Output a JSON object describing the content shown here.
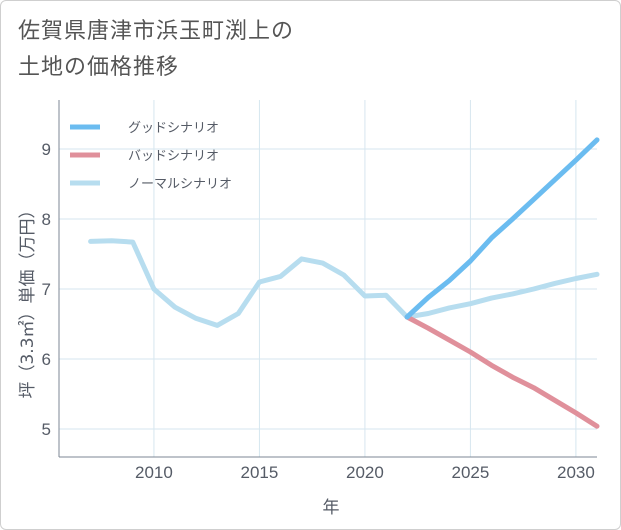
{
  "title": {
    "line1": "佐賀県唐津市浜玉町渕上の",
    "line2": "土地の価格推移"
  },
  "chart_data": {
    "type": "line",
    "xlabel": "年",
    "ylabel": "坪（3.3㎡）単価（万円）",
    "xlim": [
      2005.5,
      2031
    ],
    "ylim": [
      4.6,
      9.7
    ],
    "x_ticks": [
      2010,
      2015,
      2020,
      2025,
      2030
    ],
    "y_ticks": [
      5,
      6,
      7,
      8,
      9
    ],
    "grid": true,
    "legend_position": "top-left",
    "series": [
      {
        "name": "グッドシナリオ",
        "color": "#6bbcf0",
        "x": [
          2022,
          2023,
          2024,
          2025,
          2026,
          2027,
          2028,
          2029,
          2030,
          2031
        ],
        "y": [
          6.6,
          6.88,
          7.12,
          7.4,
          7.73,
          8.0,
          8.28,
          8.56,
          8.84,
          9.13
        ]
      },
      {
        "name": "バッドシナリオ",
        "color": "#e0909b",
        "x": [
          2022,
          2023,
          2024,
          2025,
          2026,
          2027,
          2028,
          2029,
          2030,
          2031
        ],
        "y": [
          6.6,
          6.44,
          6.27,
          6.1,
          5.91,
          5.74,
          5.59,
          5.41,
          5.23,
          5.04
        ]
      },
      {
        "name": "ノーマルシナリオ",
        "color": "#b7ddef",
        "x": [
          2007,
          2008,
          2009,
          2010,
          2011,
          2012,
          2013,
          2014,
          2015,
          2016,
          2017,
          2018,
          2019,
          2020,
          2021,
          2022,
          2023,
          2024,
          2025,
          2026,
          2027,
          2028,
          2029,
          2030,
          2031
        ],
        "y": [
          7.68,
          7.69,
          7.67,
          7.0,
          6.74,
          6.58,
          6.48,
          6.65,
          7.1,
          7.18,
          7.43,
          7.37,
          7.2,
          6.9,
          6.91,
          6.6,
          6.65,
          6.73,
          6.79,
          6.87,
          6.93,
          7.0,
          7.08,
          7.15,
          7.21
        ]
      }
    ]
  }
}
